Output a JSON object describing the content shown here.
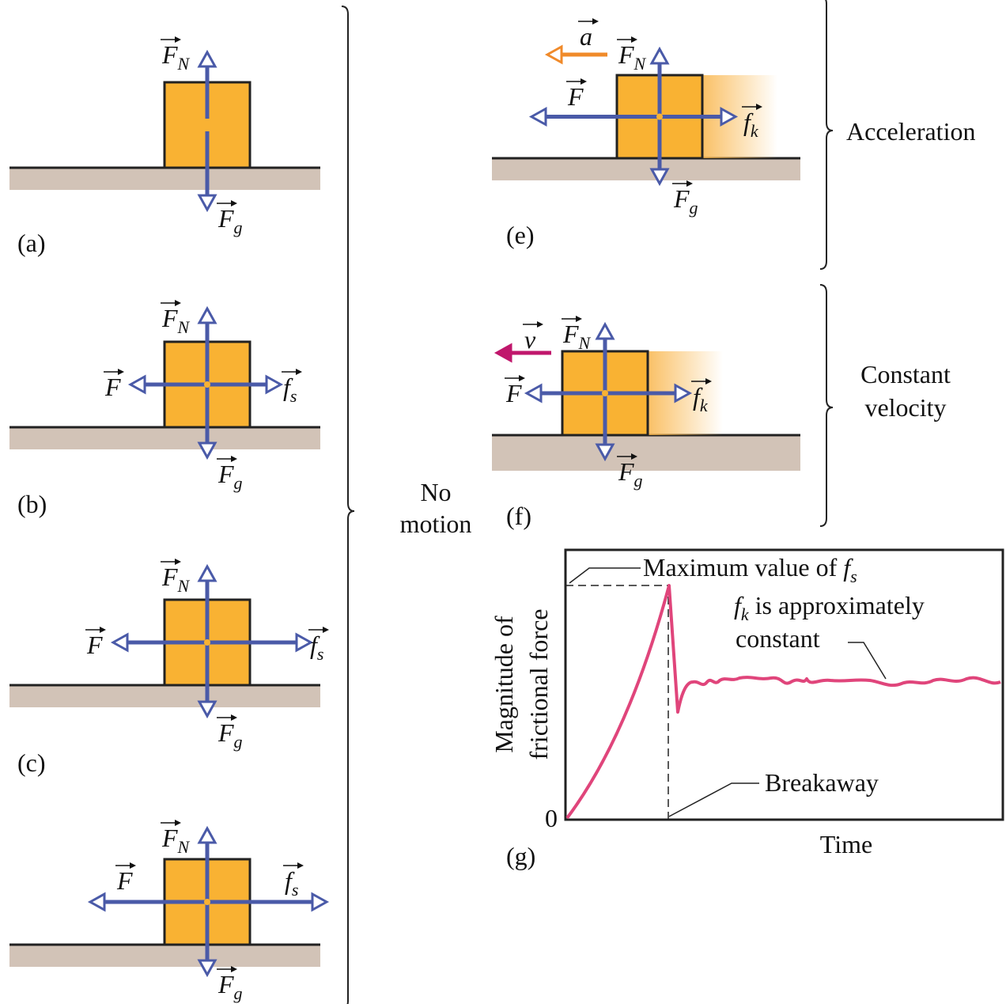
{
  "panels": [
    {
      "label": "(a)",
      "forces": {
        "normal": {
          "symbol": "F",
          "sub": "N"
        },
        "gravity": {
          "symbol": "F",
          "sub": "g"
        }
      }
    },
    {
      "label": "(b)",
      "forces": {
        "normal": {
          "symbol": "F",
          "sub": "N"
        },
        "gravity": {
          "symbol": "F",
          "sub": "g"
        },
        "applied": {
          "symbol": "F"
        },
        "friction": {
          "symbol": "f",
          "sub": "s"
        }
      }
    },
    {
      "label": "(c)",
      "forces": {
        "normal": {
          "symbol": "F",
          "sub": "N"
        },
        "gravity": {
          "symbol": "F",
          "sub": "g"
        },
        "applied": {
          "symbol": "F"
        },
        "friction": {
          "symbol": "f",
          "sub": "s"
        }
      }
    },
    {
      "forces": {
        "normal": {
          "symbol": "F",
          "sub": "N"
        },
        "gravity": {
          "symbol": "F",
          "sub": "g"
        },
        "applied": {
          "symbol": "F"
        },
        "friction": {
          "symbol": "f",
          "sub": "s"
        }
      }
    },
    {
      "label": "(e)",
      "motion": {
        "symbol": "a"
      },
      "forces": {
        "normal": {
          "symbol": "F",
          "sub": "N"
        },
        "gravity": {
          "symbol": "F",
          "sub": "g"
        },
        "applied": {
          "symbol": "F"
        },
        "friction": {
          "symbol": "f",
          "sub": "k"
        }
      }
    },
    {
      "label": "(f)",
      "motion": {
        "symbol": "v"
      },
      "forces": {
        "normal": {
          "symbol": "F",
          "sub": "N"
        },
        "gravity": {
          "symbol": "F",
          "sub": "g"
        },
        "applied": {
          "symbol": "F"
        },
        "friction": {
          "symbol": "f",
          "sub": "k"
        }
      }
    }
  ],
  "groups": {
    "no_motion": [
      "No",
      "motion"
    ],
    "acceleration": [
      "Acceleration"
    ],
    "constant_velocity": [
      "Constant",
      "velocity"
    ]
  },
  "graph": {
    "label": "(g)",
    "y_axis": [
      "Magnitude of",
      "frictional force"
    ],
    "x_axis": "Time",
    "origin": "0",
    "max_label": {
      "text": "Maximum value of",
      "symbol": "f",
      "sub": "s"
    },
    "kinetic_label": {
      "symbol": "f",
      "sub": "k",
      "text": "is approximately",
      "line2": "constant"
    },
    "breakaway": "Breakaway"
  }
}
